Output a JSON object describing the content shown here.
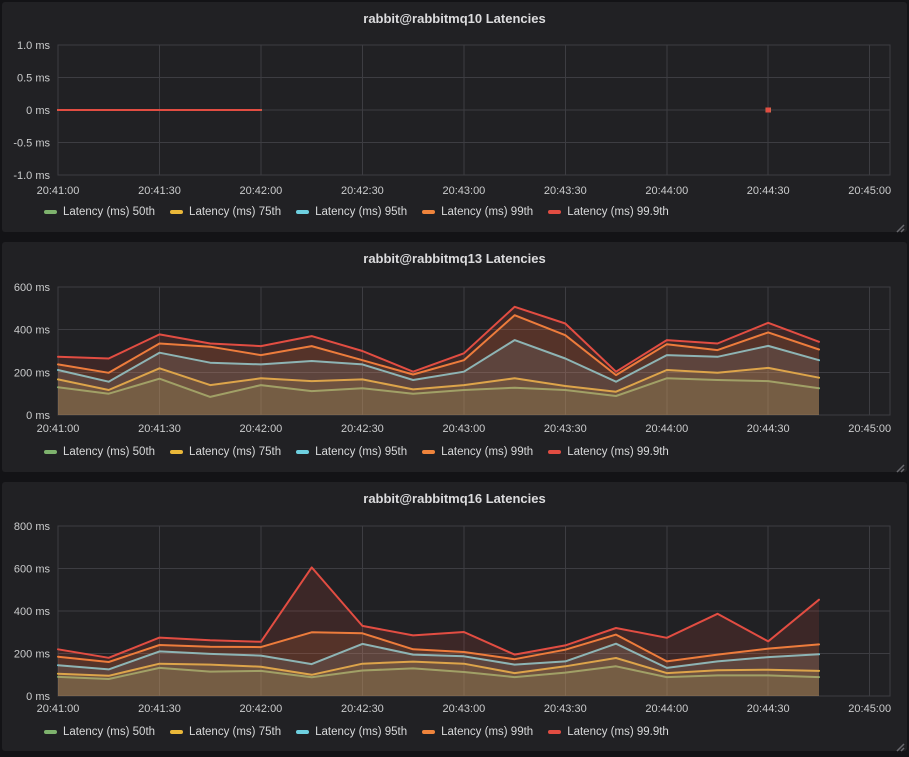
{
  "colors": {
    "p50": "#7EB26D",
    "p75": "#EAB839",
    "p95": "#6ED0E0",
    "p99": "#EF843C",
    "p999": "#E24D42",
    "panel_bg": "#212124",
    "page_bg": "#131316",
    "grid": "#3d3d42",
    "tick_text": "#cbcccd",
    "title_text": "#dcdcde"
  },
  "chart_data": [
    {
      "type": "line",
      "title": "rabbit@rabbitmq10 Latencies",
      "unit": "ms",
      "grid": true,
      "legend_position": "bottom",
      "x_tick_labels": [
        "20:41:00",
        "20:41:30",
        "20:42:00",
        "20:42:30",
        "20:43:00",
        "20:43:30",
        "20:44:00",
        "20:44:30",
        "20:45:00"
      ],
      "x_times": [
        "20:41:00",
        "20:41:15",
        "20:41:30",
        "20:41:45",
        "20:42:00",
        "20:42:15",
        "20:42:30",
        "20:42:45",
        "20:43:00",
        "20:43:15",
        "20:43:30",
        "20:43:45",
        "20:44:00",
        "20:44:15",
        "20:44:30",
        "20:44:45"
      ],
      "ylim": [
        -1.0,
        1.0
      ],
      "y_ticks": [
        {
          "value": -1.0,
          "label": "-1.0 ms"
        },
        {
          "value": -0.5,
          "label": "-0.5 ms"
        },
        {
          "value": 0,
          "label": "0 ms"
        },
        {
          "value": 0.5,
          "label": "0.5 ms"
        },
        {
          "value": 1.0,
          "label": "1.0 ms"
        }
      ],
      "series": [
        {
          "name": "Latency (ms) 50th",
          "color": "#7EB26D",
          "values": [
            0,
            0,
            0,
            0,
            0,
            null,
            null,
            null,
            null,
            null,
            null,
            null,
            null,
            null,
            0,
            null
          ]
        },
        {
          "name": "Latency (ms) 75th",
          "color": "#EAB839",
          "values": [
            0,
            0,
            0,
            0,
            0,
            null,
            null,
            null,
            null,
            null,
            null,
            null,
            null,
            null,
            0,
            null
          ]
        },
        {
          "name": "Latency (ms) 95th",
          "color": "#6ED0E0",
          "values": [
            0,
            0,
            0,
            0,
            0,
            null,
            null,
            null,
            null,
            null,
            null,
            null,
            null,
            null,
            0,
            null
          ]
        },
        {
          "name": "Latency (ms) 99th",
          "color": "#EF843C",
          "values": [
            0,
            0,
            0,
            0,
            0,
            null,
            null,
            null,
            null,
            null,
            null,
            null,
            null,
            null,
            0,
            null
          ]
        },
        {
          "name": "Latency (ms) 99.9th",
          "color": "#E24D42",
          "values": [
            0,
            0,
            0,
            0,
            0,
            null,
            null,
            null,
            null,
            null,
            null,
            null,
            null,
            null,
            0,
            null
          ]
        }
      ]
    },
    {
      "type": "area",
      "title": "rabbit@rabbitmq13 Latencies",
      "unit": "ms",
      "grid": true,
      "legend_position": "bottom",
      "x_tick_labels": [
        "20:41:00",
        "20:41:30",
        "20:42:00",
        "20:42:30",
        "20:43:00",
        "20:43:30",
        "20:44:00",
        "20:44:30",
        "20:45:00"
      ],
      "x_times": [
        "20:41:00",
        "20:41:15",
        "20:41:30",
        "20:41:45",
        "20:42:00",
        "20:42:15",
        "20:42:30",
        "20:42:45",
        "20:43:00",
        "20:43:15",
        "20:43:30",
        "20:43:45",
        "20:44:00",
        "20:44:15",
        "20:44:30",
        "20:44:45"
      ],
      "ylim": [
        0,
        600
      ],
      "y_ticks": [
        {
          "value": 0,
          "label": "0 ms"
        },
        {
          "value": 200,
          "label": "200 ms"
        },
        {
          "value": 400,
          "label": "400 ms"
        },
        {
          "value": 600,
          "label": "600 ms"
        }
      ],
      "series": [
        {
          "name": "Latency (ms) 50th",
          "color": "#7EB26D",
          "values": [
            130,
            100,
            170,
            85,
            140,
            112,
            125,
            100,
            117,
            128,
            117,
            89,
            172,
            164,
            159,
            125
          ]
        },
        {
          "name": "Latency (ms) 75th",
          "color": "#EAB839",
          "values": [
            167,
            117,
            219,
            140,
            172,
            159,
            167,
            120,
            140,
            172,
            136,
            109,
            211,
            198,
            221,
            175
          ]
        },
        {
          "name": "Latency (ms) 95th",
          "color": "#6ED0E0",
          "values": [
            211,
            156,
            292,
            245,
            237,
            253,
            237,
            164,
            203,
            351,
            265,
            156,
            281,
            273,
            324,
            257
          ]
        },
        {
          "name": "Latency (ms) 99th",
          "color": "#EF843C",
          "values": [
            237,
            198,
            335,
            320,
            281,
            323,
            257,
            190,
            257,
            468,
            374,
            187,
            332,
            304,
            387,
            307
          ]
        },
        {
          "name": "Latency (ms) 99.9th",
          "color": "#E24D42",
          "values": [
            273,
            265,
            378,
            335,
            323,
            370,
            300,
            203,
            289,
            507,
            429,
            203,
            351,
            335,
            432,
            343
          ]
        }
      ]
    },
    {
      "type": "area",
      "title": "rabbit@rabbitmq16 Latencies",
      "unit": "ms",
      "grid": true,
      "legend_position": "bottom",
      "x_tick_labels": [
        "20:41:00",
        "20:41:30",
        "20:42:00",
        "20:42:30",
        "20:43:00",
        "20:43:30",
        "20:44:00",
        "20:44:30",
        "20:45:00"
      ],
      "x_times": [
        "20:41:00",
        "20:41:15",
        "20:41:30",
        "20:41:45",
        "20:42:00",
        "20:42:15",
        "20:42:30",
        "20:42:45",
        "20:43:00",
        "20:43:15",
        "20:43:30",
        "20:43:45",
        "20:44:00",
        "20:44:15",
        "20:44:30",
        "20:44:45"
      ],
      "ylim": [
        0,
        800
      ],
      "y_ticks": [
        {
          "value": 0,
          "label": "0 ms"
        },
        {
          "value": 200,
          "label": "200 ms"
        },
        {
          "value": 400,
          "label": "400 ms"
        },
        {
          "value": 600,
          "label": "600 ms"
        },
        {
          "value": 800,
          "label": "800 ms"
        }
      ],
      "series": [
        {
          "name": "Latency (ms) 50th",
          "color": "#7EB26D",
          "values": [
            90,
            80,
            132,
            115,
            118,
            88,
            120,
            130,
            113,
            89,
            110,
            140,
            89,
            97,
            97,
            89
          ]
        },
        {
          "name": "Latency (ms) 75th",
          "color": "#EAB839",
          "values": [
            105,
            95,
            152,
            148,
            138,
            100,
            152,
            162,
            152,
            108,
            140,
            179,
            108,
            121,
            124,
            118
          ]
        },
        {
          "name": "Latency (ms) 95th",
          "color": "#6ED0E0",
          "values": [
            145,
            125,
            210,
            198,
            190,
            150,
            245,
            195,
            187,
            148,
            163,
            246,
            132,
            163,
            183,
            196
          ]
        },
        {
          "name": "Latency (ms) 99th",
          "color": "#EF843C",
          "values": [
            185,
            160,
            240,
            232,
            230,
            300,
            295,
            220,
            207,
            173,
            218,
            289,
            163,
            195,
            223,
            243
          ]
        },
        {
          "name": "Latency (ms) 99.9th",
          "color": "#E24D42",
          "values": [
            220,
            180,
            275,
            262,
            255,
            605,
            330,
            285,
            301,
            195,
            238,
            320,
            274,
            387,
            257,
            453
          ]
        }
      ]
    }
  ]
}
